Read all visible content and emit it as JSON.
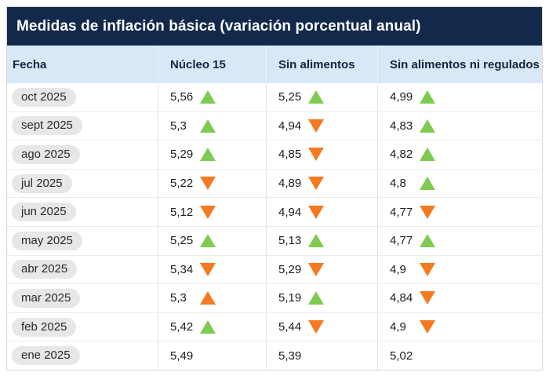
{
  "title": "Medidas de inflación básica (variación porcentual anual)",
  "colors": {
    "title_bar_bg": "#13294b",
    "header_row_bg": "#d8e8f7",
    "up_green": "#7ecb52",
    "down_orange": "#f4791f",
    "pill_bg": "#e7e7e5"
  },
  "table": {
    "columns": [
      "Fecha",
      "Núcleo 15",
      "Sin alimentos",
      "Sin alimentos ni regulados"
    ],
    "rows": [
      {
        "fecha": "oct 2025",
        "cells": [
          {
            "value": "5,56",
            "trend": "up",
            "color": "green"
          },
          {
            "value": "5,25",
            "trend": "up",
            "color": "green"
          },
          {
            "value": "4,99",
            "trend": "up",
            "color": "green"
          }
        ]
      },
      {
        "fecha": "sept 2025",
        "cells": [
          {
            "value": "5,3",
            "trend": "up",
            "color": "green"
          },
          {
            "value": "4,94",
            "trend": "down",
            "color": "orange"
          },
          {
            "value": "4,83",
            "trend": "up",
            "color": "green"
          }
        ]
      },
      {
        "fecha": "ago 2025",
        "cells": [
          {
            "value": "5,29",
            "trend": "up",
            "color": "green"
          },
          {
            "value": "4,85",
            "trend": "down",
            "color": "orange"
          },
          {
            "value": "4,82",
            "trend": "up",
            "color": "green"
          }
        ]
      },
      {
        "fecha": "jul 2025",
        "cells": [
          {
            "value": "5,22",
            "trend": "down",
            "color": "orange"
          },
          {
            "value": "4,89",
            "trend": "down",
            "color": "orange"
          },
          {
            "value": "4,8",
            "trend": "up",
            "color": "green"
          }
        ]
      },
      {
        "fecha": "jun 2025",
        "cells": [
          {
            "value": "5,12",
            "trend": "down",
            "color": "orange"
          },
          {
            "value": "4,94",
            "trend": "down",
            "color": "orange"
          },
          {
            "value": "4,77",
            "trend": "down",
            "color": "orange"
          }
        ]
      },
      {
        "fecha": "may 2025",
        "cells": [
          {
            "value": "5,25",
            "trend": "up",
            "color": "green"
          },
          {
            "value": "5,13",
            "trend": "up",
            "color": "green"
          },
          {
            "value": "4,77",
            "trend": "up",
            "color": "green"
          }
        ]
      },
      {
        "fecha": "abr 2025",
        "cells": [
          {
            "value": "5,34",
            "trend": "down",
            "color": "orange"
          },
          {
            "value": "5,29",
            "trend": "down",
            "color": "orange"
          },
          {
            "value": "4,9",
            "trend": "down",
            "color": "orange"
          }
        ]
      },
      {
        "fecha": "mar 2025",
        "cells": [
          {
            "value": "5,3",
            "trend": "up",
            "color": "orange"
          },
          {
            "value": "5,19",
            "trend": "up",
            "color": "green"
          },
          {
            "value": "4,84",
            "trend": "down",
            "color": "orange"
          }
        ]
      },
      {
        "fecha": "feb 2025",
        "cells": [
          {
            "value": "5,42",
            "trend": "up",
            "color": "green"
          },
          {
            "value": "5,44",
            "trend": "down",
            "color": "orange"
          },
          {
            "value": "4,9",
            "trend": "down",
            "color": "orange"
          }
        ]
      },
      {
        "fecha": "ene 2025",
        "cells": [
          {
            "value": "5,49",
            "trend": null,
            "color": null
          },
          {
            "value": "5,39",
            "trend": null,
            "color": null
          },
          {
            "value": "5,02",
            "trend": null,
            "color": null
          }
        ]
      }
    ]
  },
  "chart_data": {
    "type": "table",
    "title": "Medidas de inflación básica (variación porcentual anual)",
    "categories": [
      "oct 2025",
      "sept 2025",
      "ago 2025",
      "jul 2025",
      "jun 2025",
      "may 2025",
      "abr 2025",
      "mar 2025",
      "feb 2025",
      "ene 2025"
    ],
    "series": [
      {
        "name": "Núcleo 15",
        "values": [
          5.56,
          5.3,
          5.29,
          5.22,
          5.12,
          5.25,
          5.34,
          5.3,
          5.42,
          5.49
        ],
        "trends": [
          "up-green",
          "up-green",
          "up-green",
          "down-orange",
          "down-orange",
          "up-green",
          "down-orange",
          "up-orange",
          "up-green",
          null
        ]
      },
      {
        "name": "Sin alimentos",
        "values": [
          5.25,
          4.94,
          4.85,
          4.89,
          4.94,
          5.13,
          5.29,
          5.19,
          5.44,
          5.39
        ],
        "trends": [
          "up-green",
          "down-orange",
          "down-orange",
          "down-orange",
          "down-orange",
          "up-green",
          "down-orange",
          "up-green",
          "down-orange",
          null
        ]
      },
      {
        "name": "Sin alimentos ni regulados",
        "values": [
          4.99,
          4.83,
          4.82,
          4.8,
          4.77,
          4.77,
          4.9,
          4.84,
          4.9,
          5.02
        ],
        "trends": [
          "up-green",
          "up-green",
          "up-green",
          "up-green",
          "down-orange",
          "up-green",
          "down-orange",
          "down-orange",
          "down-orange",
          null
        ]
      }
    ]
  }
}
